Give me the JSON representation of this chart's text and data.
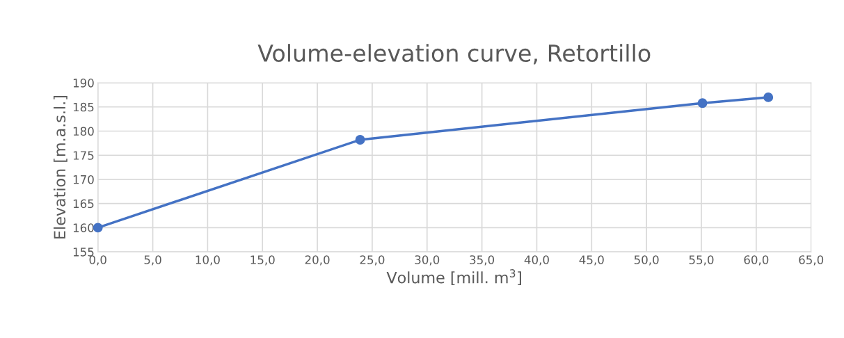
{
  "chart_data": {
    "type": "line",
    "title": "Volume-elevation curve, Retortillo",
    "xlabel": "Volume [mill. m$^{3}$]",
    "ylabel": "Elevation [m.a.s.l.]",
    "x": [
      0,
      23.9,
      55.1,
      61.1
    ],
    "series": [
      {
        "color": "#4472c4",
        "values": [
          160,
          178.2,
          185.8,
          187.0
        ]
      }
    ],
    "xlim": [
      0,
      65
    ],
    "ylim": [
      155,
      190
    ],
    "xticks": [
      {
        "value": 0,
        "label": "0,0"
      },
      {
        "value": 5,
        "label": "5,0"
      },
      {
        "value": 10,
        "label": "10,0"
      },
      {
        "value": 15,
        "label": "15,0"
      },
      {
        "value": 20,
        "label": "20,0"
      },
      {
        "value": 25,
        "label": "25,0"
      },
      {
        "value": 30,
        "label": "30,0"
      },
      {
        "value": 35,
        "label": "35,0"
      },
      {
        "value": 40,
        "label": "40,0"
      },
      {
        "value": 45,
        "label": "45,0"
      },
      {
        "value": 50,
        "label": "50,0"
      },
      {
        "value": 55,
        "label": "55,0"
      },
      {
        "value": 60,
        "label": "60,0"
      },
      {
        "value": 65,
        "label": "65,0"
      }
    ],
    "yticks": [
      155,
      160,
      165,
      170,
      175,
      180,
      185,
      190
    ],
    "grid": true,
    "marker": "circle",
    "line_style": "solid",
    "legend": false
  }
}
